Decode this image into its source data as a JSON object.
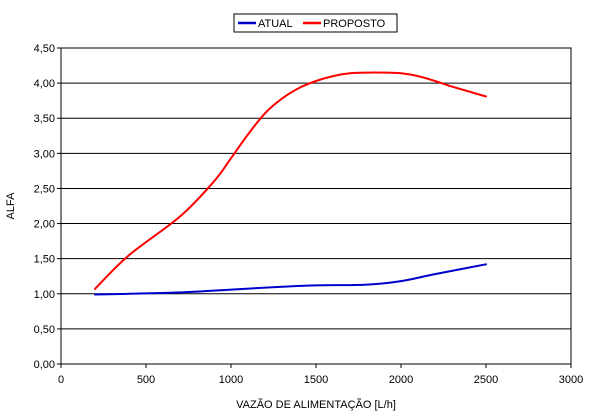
{
  "chart_data": {
    "type": "line",
    "title": "",
    "xlabel": "VAZÃO DE ALIMENTAÇÃO [L/h]",
    "ylabel": "ALFA",
    "xlim": [
      0,
      3000
    ],
    "ylim": [
      0,
      4.5
    ],
    "x_ticks": [
      0,
      500,
      1000,
      1500,
      2000,
      2500,
      3000
    ],
    "x_tick_labels": [
      "0",
      "500",
      "1000",
      "1500",
      "2000",
      "2500",
      "3000"
    ],
    "y_ticks": [
      0,
      0.5,
      1,
      1.5,
      2,
      2.5,
      3,
      3.5,
      4,
      4.5
    ],
    "y_tick_labels": [
      "0,00",
      "0,50",
      "1,00",
      "1,50",
      "2,00",
      "2,50",
      "3,00",
      "3,50",
      "4,00",
      "4,50"
    ],
    "grid": "horizontal",
    "legend_position": "top-center",
    "series": [
      {
        "name": "ATUAL",
        "color": "#0000cc",
        "x": [
          200,
          400,
          700,
          1000,
          1300,
          1500,
          1800,
          2000,
          2200,
          2500
        ],
        "y": [
          0.99,
          1.0,
          1.02,
          1.06,
          1.1,
          1.12,
          1.13,
          1.18,
          1.28,
          1.42
        ]
      },
      {
        "name": "PROPOSTO",
        "color": "#ff0000",
        "x": [
          200,
          400,
          700,
          900,
          1000,
          1100,
          1200,
          1300,
          1400,
          1500,
          1600,
          1700,
          1800,
          1900,
          2000,
          2100,
          2200,
          2300,
          2400,
          2500
        ],
        "y": [
          1.07,
          1.55,
          2.1,
          2.6,
          2.93,
          3.27,
          3.57,
          3.78,
          3.93,
          4.03,
          4.1,
          4.14,
          4.15,
          4.15,
          4.14,
          4.1,
          4.03,
          3.95,
          3.88,
          3.81
        ]
      }
    ]
  }
}
